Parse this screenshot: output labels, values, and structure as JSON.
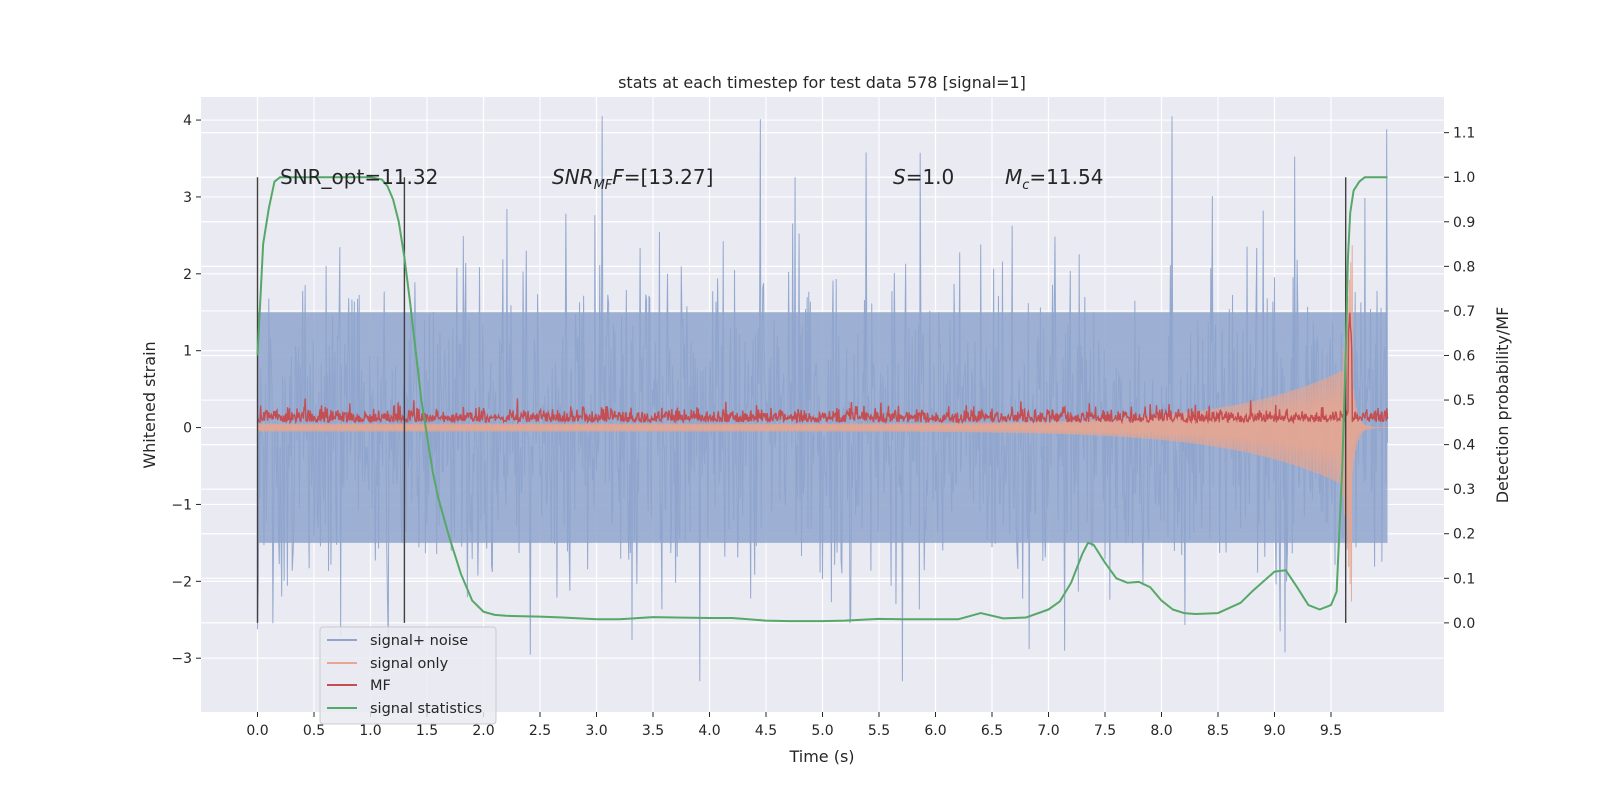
{
  "chart_data": {
    "type": "line",
    "title": "stats at each timestep for test data 578 [signal=1]",
    "xlabel": "Time (s)",
    "ylabel": "Whitened strain",
    "ylabel_right": "Detection probability/MF",
    "xlim": [
      -0.5,
      10.5
    ],
    "ylim": [
      -3.7,
      4.3
    ],
    "ylim_right": [
      -0.2,
      1.18
    ],
    "xticks": [
      "0.0",
      "0.5",
      "1.0",
      "1.5",
      "2.0",
      "2.5",
      "3.0",
      "3.5",
      "4.0",
      "4.5",
      "5.0",
      "5.5",
      "6.0",
      "6.5",
      "7.0",
      "7.5",
      "8.0",
      "8.5",
      "9.0",
      "9.5"
    ],
    "yticks": [
      "−3",
      "−2",
      "−1",
      "0",
      "1",
      "2",
      "3",
      "4"
    ],
    "yticks_right": [
      "0.0",
      "0.1",
      "0.2",
      "0.3",
      "0.4",
      "0.5",
      "0.6",
      "0.7",
      "0.8",
      "0.9",
      "1.0",
      "1.1"
    ],
    "annotations": {
      "snr_opt": "SNR_opt=11.32",
      "snr_mf_italic": "SNR",
      "snr_mf_sub": "MF",
      "snr_mf_italic2": "F",
      "snr_mf_rest": "=[13.27]",
      "s_italic": "S",
      "s_rest": "=1.0",
      "mc_italic": "M",
      "mc_sub": "c",
      "mc_rest": "=11.54"
    },
    "series": [
      {
        "name": "signal+ noise",
        "color": "#8fa5cc",
        "description_range": [
          -3.3,
          4.05
        ]
      },
      {
        "name": "signal only",
        "color": "#e8a58f"
      },
      {
        "name": "MF",
        "color": "#c44e52"
      },
      {
        "name": "signal statistics",
        "color": "#55a868",
        "x": [
          0.0,
          0.05,
          0.1,
          0.15,
          0.2,
          0.3,
          0.5,
          0.7,
          0.9,
          1.0,
          1.1,
          1.15,
          1.2,
          1.25,
          1.3,
          1.35,
          1.4,
          1.45,
          1.5,
          1.55,
          1.6,
          1.7,
          1.8,
          1.9,
          2.0,
          2.1,
          2.2,
          2.3,
          2.5,
          2.7,
          3.0,
          3.2,
          3.5,
          3.7,
          4.0,
          4.2,
          4.5,
          4.7,
          5.0,
          5.2,
          5.5,
          5.7,
          6.0,
          6.2,
          6.4,
          6.6,
          6.8,
          7.0,
          7.1,
          7.2,
          7.3,
          7.35,
          7.4,
          7.5,
          7.6,
          7.7,
          7.8,
          7.9,
          8.0,
          8.1,
          8.2,
          8.3,
          8.5,
          8.7,
          8.8,
          9.0,
          9.1,
          9.2,
          9.3,
          9.4,
          9.5,
          9.55,
          9.6,
          9.63,
          9.65,
          9.67,
          9.7,
          9.75,
          9.8,
          9.9,
          10.0
        ],
        "y": [
          0.6,
          0.85,
          0.93,
          0.99,
          1.0,
          1.0,
          1.0,
          1.0,
          1.0,
          1.0,
          0.995,
          0.98,
          0.95,
          0.9,
          0.82,
          0.72,
          0.61,
          0.5,
          0.42,
          0.34,
          0.28,
          0.19,
          0.11,
          0.05,
          0.025,
          0.018,
          0.016,
          0.015,
          0.014,
          0.012,
          0.008,
          0.008,
          0.013,
          0.012,
          0.011,
          0.011,
          0.005,
          0.004,
          0.004,
          0.005,
          0.009,
          0.008,
          0.008,
          0.008,
          0.022,
          0.01,
          0.012,
          0.03,
          0.048,
          0.09,
          0.155,
          0.18,
          0.175,
          0.135,
          0.1,
          0.09,
          0.092,
          0.08,
          0.05,
          0.03,
          0.022,
          0.02,
          0.022,
          0.045,
          0.07,
          0.115,
          0.118,
          0.08,
          0.04,
          0.03,
          0.04,
          0.07,
          0.35,
          0.6,
          0.82,
          0.92,
          0.97,
          0.99,
          1.0,
          1.0,
          1.0
        ]
      }
    ],
    "vlines_x": [
      0.0,
      1.3,
      9.63
    ],
    "grid": true,
    "legend_position": "lower-left"
  }
}
